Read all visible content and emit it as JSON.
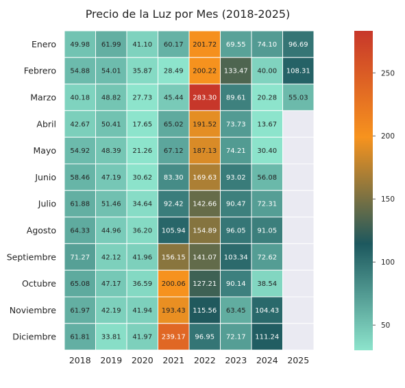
{
  "chart_data": {
    "type": "heatmap",
    "title": "Precio de la Luz por Mes (2018-2025)",
    "xlabel": "",
    "ylabel": "",
    "columns": [
      "2018",
      "2019",
      "2020",
      "2021",
      "2022",
      "2023",
      "2024",
      "2025"
    ],
    "rows": [
      "Enero",
      "Febrero",
      "Marzo",
      "Abril",
      "Mayo",
      "Junio",
      "Julio",
      "Agosto",
      "Septiembre",
      "Octubre",
      "Noviembre",
      "Diciembre"
    ],
    "values": [
      [
        49.98,
        61.99,
        41.1,
        60.17,
        201.72,
        69.55,
        74.1,
        96.69
      ],
      [
        54.88,
        54.01,
        35.87,
        28.49,
        200.22,
        133.47,
        40.0,
        108.31
      ],
      [
        40.18,
        48.82,
        27.73,
        45.44,
        283.3,
        89.61,
        20.28,
        55.03
      ],
      [
        42.67,
        50.41,
        17.65,
        65.02,
        191.52,
        73.73,
        13.67,
        null
      ],
      [
        54.92,
        48.39,
        21.26,
        67.12,
        187.13,
        74.21,
        30.4,
        null
      ],
      [
        58.46,
        47.19,
        30.62,
        83.3,
        169.63,
        93.02,
        56.08,
        null
      ],
      [
        61.88,
        51.46,
        34.64,
        92.42,
        142.66,
        90.47,
        72.31,
        null
      ],
      [
        64.33,
        44.96,
        36.2,
        105.94,
        154.89,
        96.05,
        91.05,
        null
      ],
      [
        71.27,
        42.12,
        41.96,
        156.15,
        141.07,
        103.34,
        72.62,
        null
      ],
      [
        65.08,
        47.17,
        36.59,
        200.06,
        127.21,
        90.14,
        38.54,
        null
      ],
      [
        61.97,
        42.19,
        41.94,
        193.43,
        115.56,
        63.45,
        104.43,
        null
      ],
      [
        61.81,
        33.81,
        41.97,
        239.17,
        96.95,
        72.17,
        111.24,
        null
      ]
    ],
    "value_format": "2 decimals",
    "colorbar": {
      "ticks": [
        50,
        100,
        150,
        200,
        250
      ],
      "range": [
        30,
        283.3
      ],
      "colormap": [
        "#8de4cc",
        "#1d585e",
        "#f7931e",
        "#c7372a"
      ]
    },
    "missing_color": "#eaeaf2",
    "grid": false
  }
}
